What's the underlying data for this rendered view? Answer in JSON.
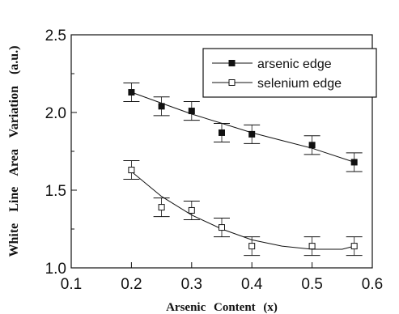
{
  "chart_data": {
    "type": "scatter",
    "title": "",
    "xlabel": "Arsenic Content (x)",
    "ylabel": "White Line Area Variation (a.u.)",
    "xlim": [
      0.1,
      0.6
    ],
    "ylim": [
      1.0,
      2.5
    ],
    "xticks": [
      "0.1",
      "0.2",
      "0.3",
      "0.4",
      "0.5",
      "0.6"
    ],
    "yticks": [
      "1.0",
      "1.5",
      "2.0",
      "2.5"
    ],
    "grid": false,
    "legend_position": "top-right",
    "error_bar": 0.06,
    "series": [
      {
        "name": "arsenic edge",
        "marker": "filled-square",
        "x": [
          0.2,
          0.25,
          0.3,
          0.35,
          0.4,
          0.5,
          0.57
        ],
        "y": [
          2.13,
          2.04,
          2.01,
          1.87,
          1.86,
          1.79,
          1.68
        ],
        "fit": [
          [
            0.2,
            2.13
          ],
          [
            0.25,
            2.06
          ],
          [
            0.3,
            1.99
          ],
          [
            0.35,
            1.93
          ],
          [
            0.4,
            1.87
          ],
          [
            0.45,
            1.82
          ],
          [
            0.5,
            1.77
          ],
          [
            0.57,
            1.68
          ]
        ]
      },
      {
        "name": "selenium edge",
        "marker": "open-square",
        "x": [
          0.2,
          0.25,
          0.3,
          0.35,
          0.4,
          0.5,
          0.57
        ],
        "y": [
          1.63,
          1.39,
          1.37,
          1.26,
          1.14,
          1.14,
          1.14
        ],
        "fit": [
          [
            0.2,
            1.62
          ],
          [
            0.25,
            1.46
          ],
          [
            0.3,
            1.34
          ],
          [
            0.35,
            1.25
          ],
          [
            0.4,
            1.18
          ],
          [
            0.45,
            1.14
          ],
          [
            0.5,
            1.12
          ],
          [
            0.55,
            1.12
          ],
          [
            0.57,
            1.14
          ]
        ]
      }
    ]
  }
}
